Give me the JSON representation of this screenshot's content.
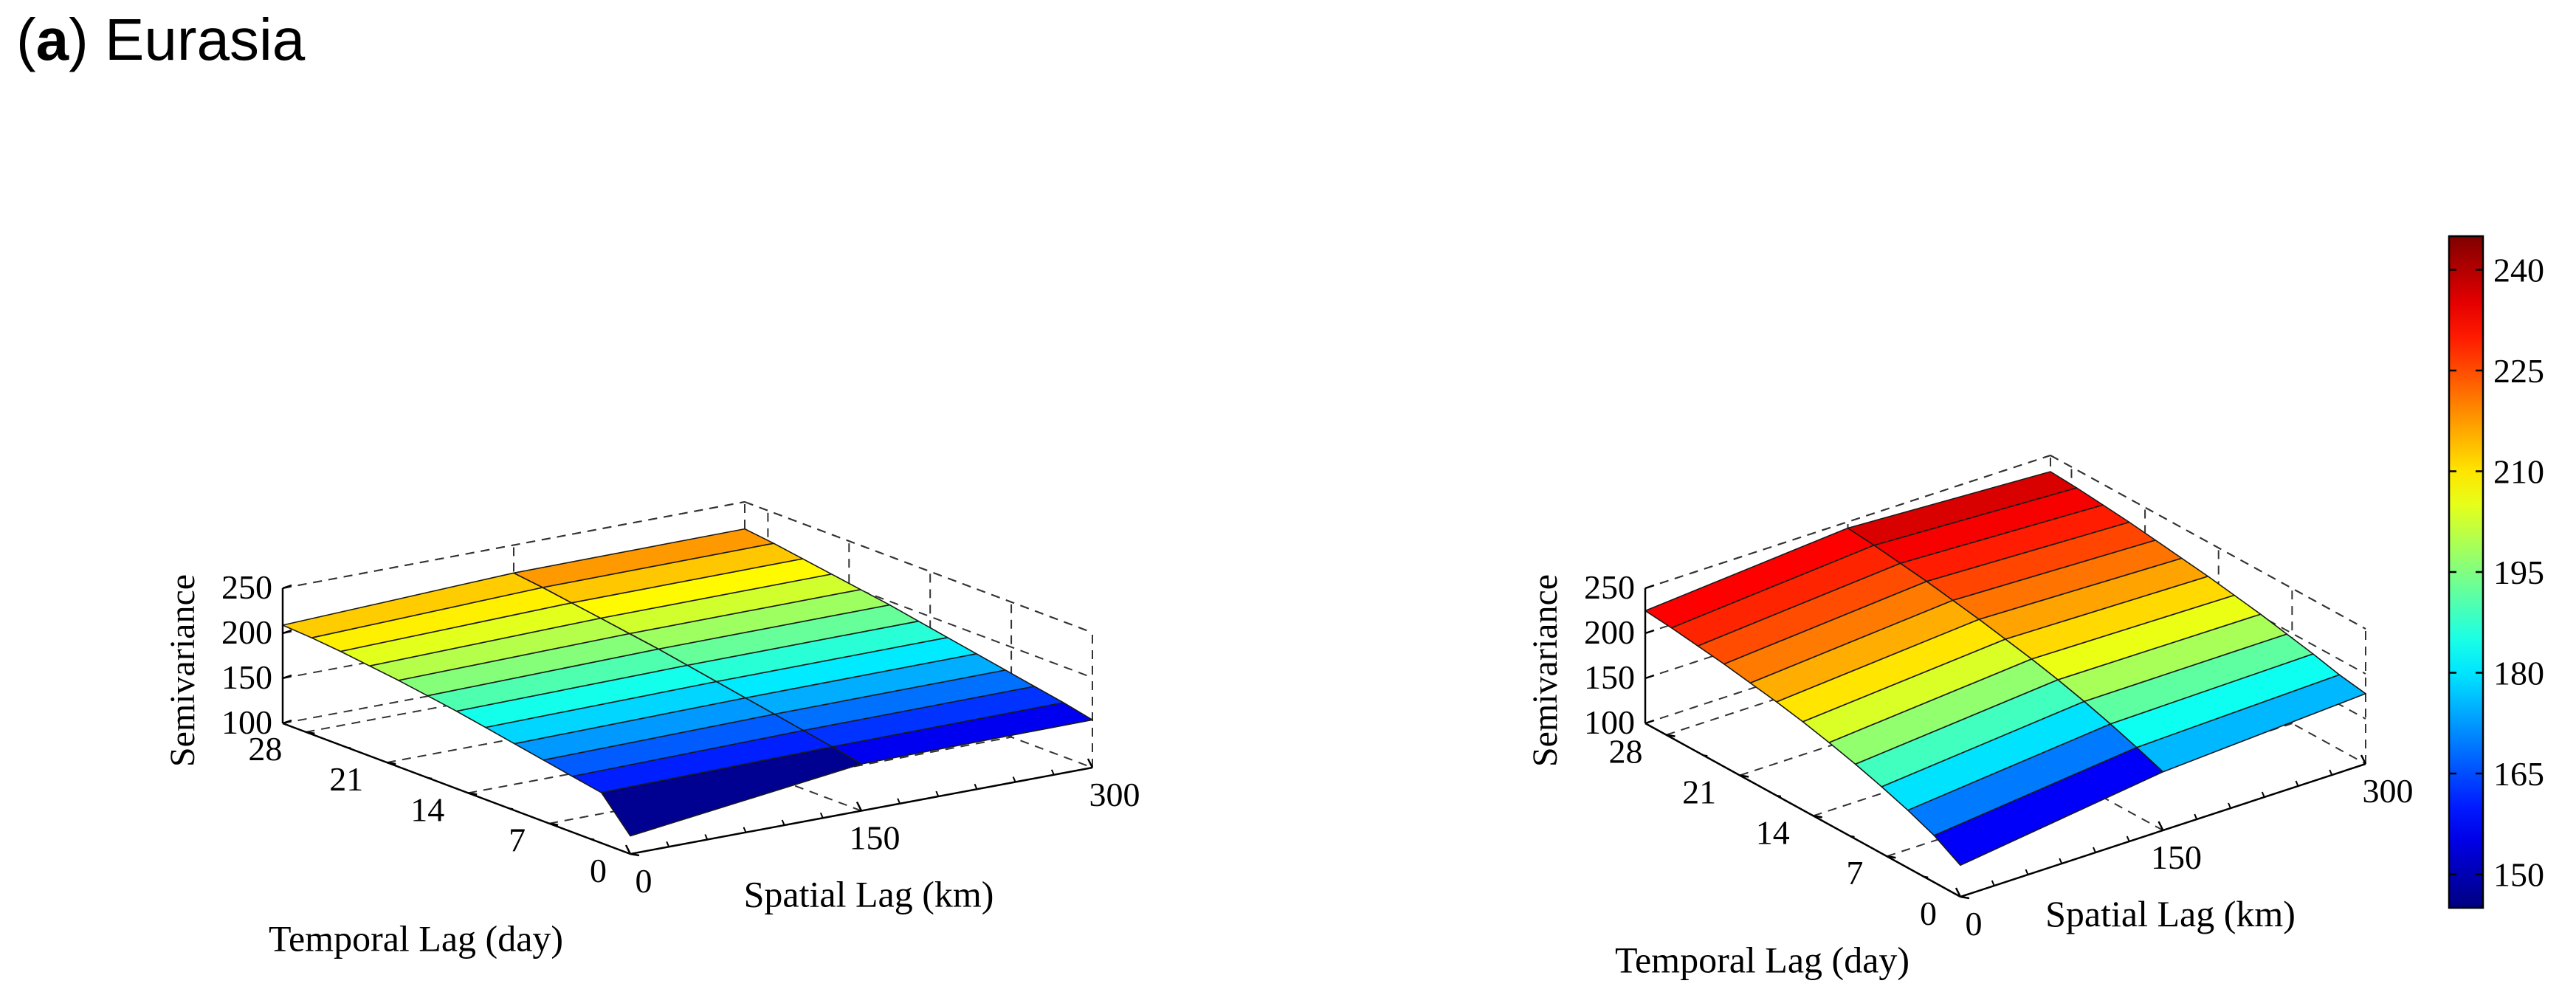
{
  "figure": {
    "panel_letter": "a",
    "panel_title": "Eurasia"
  },
  "chart_data": [
    {
      "type": "surface",
      "title": "",
      "xlabel": "Spatial Lag (km)",
      "ylabel": "Temporal Lag (day)",
      "zlabel": "Semivariance",
      "spatial_lags": [
        0,
        150,
        300
      ],
      "temporal_lags": [
        0,
        2.5,
        5,
        7.5,
        10,
        12.5,
        15,
        17.5,
        20,
        22.5,
        25,
        27.5,
        30
      ],
      "xticks": [
        "0",
        "150",
        "300"
      ],
      "yticks": [
        "0",
        "7",
        "14",
        "21",
        "28"
      ],
      "zticks": [
        "100",
        "150",
        "200",
        "250"
      ],
      "xlim": [
        0,
        300
      ],
      "ylim": [
        0,
        30
      ],
      "zlim": [
        100,
        250
      ],
      "z": [
        [
          120,
          152,
          153
        ],
        [
          156,
          159,
          160
        ],
        [
          162,
          165,
          166
        ],
        [
          168,
          171,
          172
        ],
        [
          174,
          177,
          178
        ],
        [
          180,
          183,
          184
        ],
        [
          186,
          189,
          190
        ],
        [
          191,
          195,
          196
        ],
        [
          196,
          200,
          201
        ],
        [
          200,
          205,
          206
        ],
        [
          204,
          210,
          211
        ],
        [
          207,
          215,
          216
        ],
        [
          209,
          219,
          220
        ]
      ]
    },
    {
      "type": "surface",
      "title": "",
      "xlabel": "Spatial Lag (km)",
      "ylabel": "Temporal Lag (day)",
      "zlabel": "Semivariance",
      "spatial_lags": [
        0,
        150,
        300
      ],
      "temporal_lags": [
        0,
        2.5,
        5,
        7.5,
        10,
        12.5,
        15,
        17.5,
        20,
        22.5,
        25,
        27.5,
        30
      ],
      "xticks": [
        "0",
        "150",
        "300"
      ],
      "yticks": [
        "0",
        "7",
        "14",
        "21",
        "28"
      ],
      "zticks": [
        "100",
        "150",
        "200",
        "250"
      ],
      "xlim": [
        0,
        300
      ],
      "ylim": [
        0,
        30
      ],
      "zlim": [
        100,
        250
      ],
      "z": [
        [
          135,
          165,
          178
        ],
        [
          152,
          176,
          183
        ],
        [
          164,
          186,
          190
        ],
        [
          174,
          195,
          196
        ],
        [
          183,
          203,
          202
        ],
        [
          191,
          210,
          207
        ],
        [
          198,
          216,
          212
        ],
        [
          204,
          222,
          216
        ],
        [
          209,
          227,
          220
        ],
        [
          214,
          232,
          224
        ],
        [
          218,
          236,
          227
        ],
        [
          222,
          240,
          230
        ],
        [
          225,
          243,
          232
        ]
      ]
    }
  ],
  "colorbar": {
    "min": 145,
    "max": 245,
    "ticks": [
      "150",
      "165",
      "180",
      "195",
      "210",
      "225",
      "240"
    ]
  }
}
